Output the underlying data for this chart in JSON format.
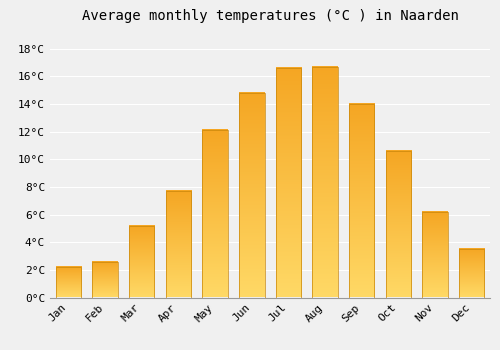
{
  "title": "Average monthly temperatures (°C ) in Naarden",
  "months": [
    "Jan",
    "Feb",
    "Mar",
    "Apr",
    "May",
    "Jun",
    "Jul",
    "Aug",
    "Sep",
    "Oct",
    "Nov",
    "Dec"
  ],
  "values": [
    2.2,
    2.6,
    5.2,
    7.7,
    12.1,
    14.8,
    16.6,
    16.7,
    14.0,
    10.6,
    6.2,
    3.5
  ],
  "bar_color_dark": "#F5A623",
  "bar_color_light": "#FFD966",
  "bar_edge_color": "#C8860A",
  "yticks": [
    0,
    2,
    4,
    6,
    8,
    10,
    12,
    14,
    16,
    18
  ],
  "ylim": [
    0,
    19.5
  ],
  "background_color": "#f0f0f0",
  "grid_color": "#ffffff",
  "title_fontsize": 10,
  "tick_fontsize": 8,
  "font_family": "monospace"
}
